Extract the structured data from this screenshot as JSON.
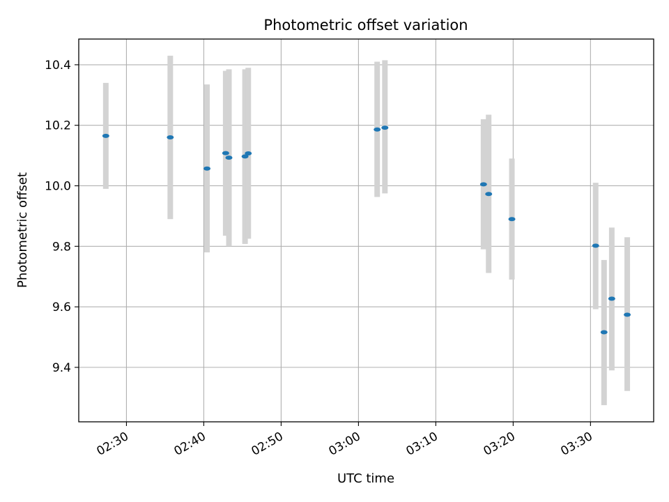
{
  "chart_data": {
    "type": "scatter",
    "title": "Photometric offset variation",
    "xlabel": "UTC time",
    "ylabel": "Photometric offset",
    "x_ticks": [
      "02:30",
      "02:40",
      "02:50",
      "03:00",
      "03:10",
      "03:20",
      "03:30"
    ],
    "x_tick_minutes": [
      0,
      10,
      20,
      30,
      40,
      50,
      60
    ],
    "y_ticks": [
      "9.4",
      "9.6",
      "9.8",
      "10.0",
      "10.2",
      "10.4"
    ],
    "y_tick_values": [
      9.4,
      9.6,
      9.8,
      10.0,
      10.2,
      10.4
    ],
    "xlim": [
      "02:23:50",
      "03:38:10"
    ],
    "ylim": [
      9.22,
      10.485
    ],
    "grid": true,
    "marker_color": "#1f77b4",
    "errorbar_color": "#d3d3d3",
    "points": [
      {
        "time": "02:27:20",
        "y": 10.165,
        "ylow": 9.99,
        "yhigh": 10.34
      },
      {
        "time": "02:35:40",
        "y": 10.16,
        "ylow": 9.89,
        "yhigh": 10.43
      },
      {
        "time": "02:40:25",
        "y": 10.057,
        "ylow": 9.78,
        "yhigh": 10.335
      },
      {
        "time": "02:42:50",
        "y": 10.108,
        "ylow": 9.835,
        "yhigh": 10.38
      },
      {
        "time": "02:43:15",
        "y": 10.093,
        "ylow": 9.8,
        "yhigh": 10.385
      },
      {
        "time": "02:45:20",
        "y": 10.097,
        "ylow": 9.808,
        "yhigh": 10.385
      },
      {
        "time": "02:45:45",
        "y": 10.107,
        "ylow": 9.825,
        "yhigh": 10.39
      },
      {
        "time": "03:02:25",
        "y": 10.186,
        "ylow": 9.963,
        "yhigh": 10.41
      },
      {
        "time": "03:03:25",
        "y": 10.192,
        "ylow": 9.975,
        "yhigh": 10.415
      },
      {
        "time": "03:16:10",
        "y": 10.005,
        "ylow": 9.79,
        "yhigh": 10.22
      },
      {
        "time": "03:16:50",
        "y": 9.973,
        "ylow": 9.712,
        "yhigh": 10.235
      },
      {
        "time": "03:19:50",
        "y": 9.89,
        "ylow": 9.69,
        "yhigh": 10.09
      },
      {
        "time": "03:30:40",
        "y": 9.802,
        "ylow": 9.592,
        "yhigh": 10.01
      },
      {
        "time": "03:31:45",
        "y": 9.516,
        "ylow": 9.275,
        "yhigh": 9.755
      },
      {
        "time": "03:32:45",
        "y": 9.627,
        "ylow": 9.39,
        "yhigh": 9.862
      },
      {
        "time": "03:34:45",
        "y": 9.574,
        "ylow": 9.322,
        "yhigh": 9.83
      }
    ]
  }
}
